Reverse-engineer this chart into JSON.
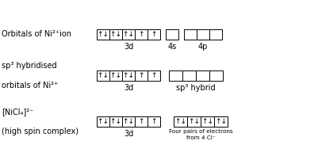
{
  "row1_label": "Orbitals of Ni²⁺ion",
  "row2_label1": "sp³ hybridised",
  "row2_label2": "orbitals of Ni²⁺",
  "row3_label1": "[NiCl₄]²⁻",
  "row3_label2": "(high spin complex)",
  "bg_color": "#ffffff",
  "row1_3d": [
    "↑↓",
    "↑↓",
    "↑↓",
    "↑",
    "↑"
  ],
  "row1_4s": [
    ""
  ],
  "row1_4p": [
    "",
    "",
    ""
  ],
  "row2_3d": [
    "↑↓",
    "↑↓",
    "↑↓",
    "↑",
    "↑"
  ],
  "row2_sp3": [
    "",
    "",
    "",
    ""
  ],
  "row3_3d": [
    "↑↓",
    "↑↓",
    "↑↓",
    "↑",
    "↑"
  ],
  "row3_cl": [
    "↑↓",
    "↑↓",
    "↑↓",
    "↑↓"
  ],
  "label_3d": "3d",
  "label_4s": "4s",
  "label_4p": "4p",
  "label_sp3": "sp³ hybrid",
  "label_cl_line1": "Four pairs of electrons",
  "label_cl_line2": "from 4 Cl⁻",
  "figw": 4.01,
  "figh": 2.02,
  "dpi": 100
}
